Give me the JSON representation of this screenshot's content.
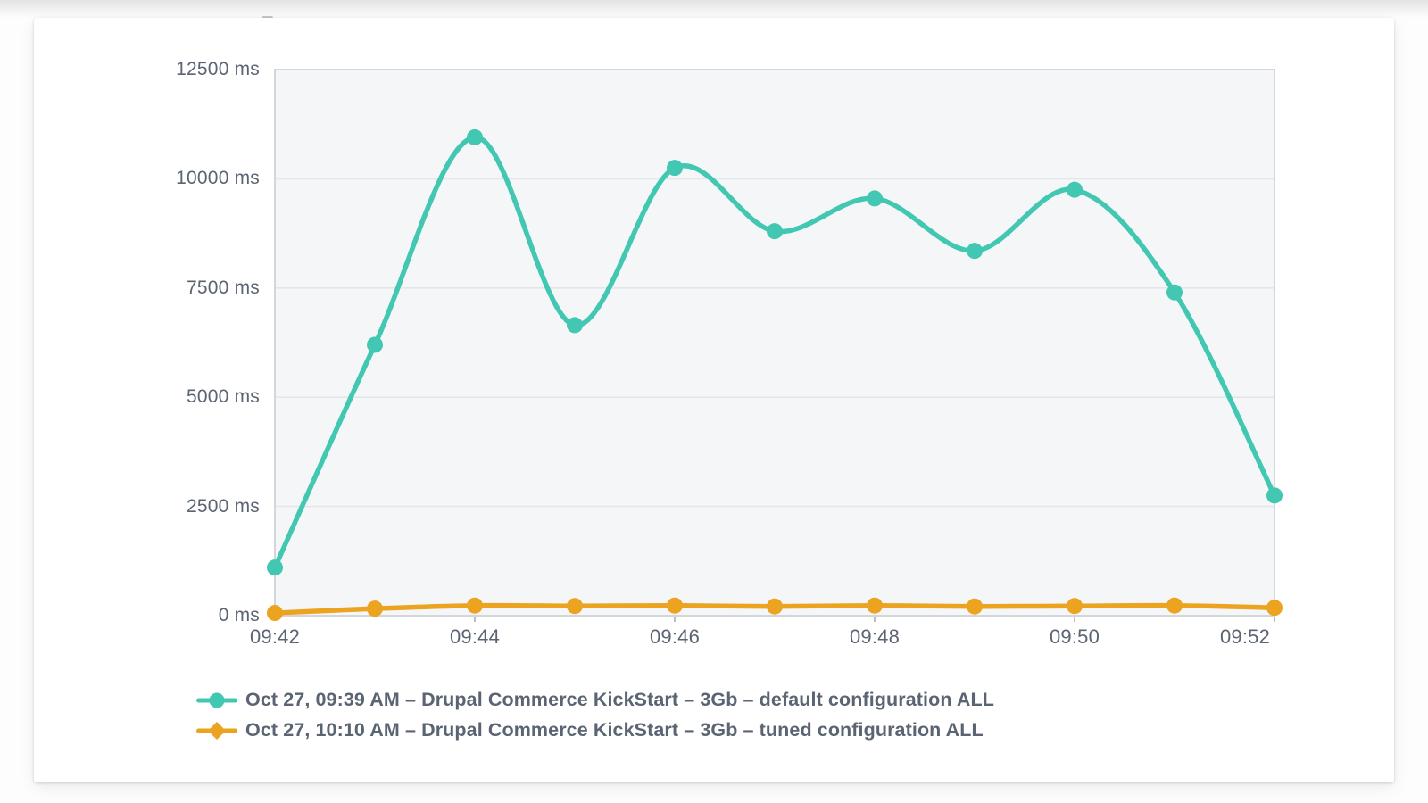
{
  "chart_data": {
    "type": "line",
    "title": "",
    "xlabel": "",
    "ylabel": "",
    "unit": "ms",
    "ylim": [
      0,
      12500
    ],
    "grid": true,
    "legend_position": "bottom-left",
    "x": [
      "09:42",
      "09:43",
      "09:44",
      "09:45",
      "09:46",
      "09:47",
      "09:48",
      "09:49",
      "09:50",
      "09:51",
      "09:52"
    ],
    "x_tick_labels": [
      "09:42",
      "09:44",
      "09:46",
      "09:48",
      "09:50",
      "09:52"
    ],
    "y_tick_labels": [
      "0 ms",
      "2500 ms",
      "5000 ms",
      "7500 ms",
      "10000 ms",
      "12500 ms"
    ],
    "series": [
      {
        "name": "Oct 27, 09:39 AM – Drupal Commerce KickStart – 3Gb – default configuration ALL",
        "color": "#42c7b2",
        "marker": "circle-marker",
        "values": [
          1100,
          6200,
          10950,
          6650,
          10250,
          8800,
          9550,
          8350,
          9750,
          7400,
          2750
        ]
      },
      {
        "name": "Oct 27, 10:10 AM – Drupal Commerce KickStart – 3Gb – tuned configuration ALL",
        "color": "#eba320",
        "marker": "diamond-marker",
        "values": [
          60,
          160,
          230,
          220,
          230,
          210,
          230,
          210,
          220,
          230,
          180
        ]
      }
    ],
    "colors": {
      "axis_text": "#5a6472",
      "plot_background": "#f5f6f8",
      "plot_border": "#d3d6db",
      "gridline": "#e4e6ea",
      "tick_mark": "#b9bdc4"
    }
  }
}
